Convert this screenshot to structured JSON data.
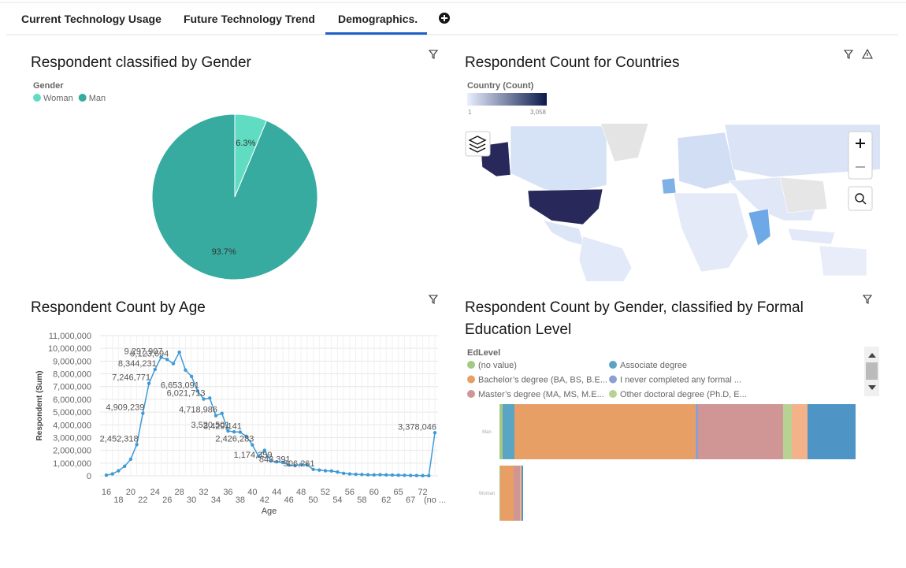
{
  "tabs": [
    "Current Technology Usage",
    "Future Technology Trend",
    "Demographics."
  ],
  "chart_data": [
    {
      "type": "pie",
      "title": "Respondent classified by Gender",
      "legend_title": "Gender",
      "categories": [
        "Woman",
        "Man"
      ],
      "values": [
        6.3,
        93.7
      ],
      "value_labels": [
        "6.3%",
        "93.7%"
      ],
      "colors": [
        "#5fdcc2",
        "#37ab9f"
      ]
    },
    {
      "type": "map",
      "title": "Respondent Count for Countries",
      "legend_title": "Country (Count)",
      "scale_ticks": [
        1,
        {
          "value": 3058,
          "label": "3,058"
        }
      ],
      "colors": [
        "#e9efff",
        "#0c1a4a"
      ]
    },
    {
      "type": "line",
      "title": "Respondent Count by Age",
      "x_label": "Age",
      "y_label": "Respondent (Sum)",
      "color": "#3f9ad6",
      "categories": [
        16,
        null,
        18,
        null,
        20,
        null,
        22,
        null,
        24,
        null,
        26,
        null,
        28,
        null,
        30,
        null,
        32,
        null,
        34,
        null,
        36,
        null,
        38,
        null,
        40,
        null,
        42,
        null,
        44,
        null,
        46,
        null,
        48,
        null,
        50,
        null,
        52,
        null,
        54,
        null,
        56,
        null,
        58,
        null,
        60,
        null,
        62,
        null,
        65,
        null,
        67,
        null,
        72,
        null,
        "(no ..."
      ],
      "values": [
        50000,
        150000,
        400000,
        750000,
        1300000,
        2452318,
        4909239,
        7246771,
        8344231,
        9297907,
        9123694,
        8800000,
        9700000,
        8300000,
        7800000,
        6653091,
        6021713,
        6100000,
        4718986,
        4900000,
        3520501,
        3450000,
        3429141,
        3100000,
        2426283,
        1550000,
        2000000,
        1174359,
        1100000,
        1050000,
        843391,
        800000,
        900000,
        850000,
        506261,
        450000,
        400000,
        380000,
        300000,
        200000,
        150000,
        120000,
        100000,
        80000,
        70000,
        90000,
        70000,
        60000,
        50000,
        40000,
        30000,
        20000,
        15000,
        10000,
        3378046
      ],
      "value_labels": [
        null,
        null,
        null,
        null,
        null,
        "2,452,318",
        "4,909,239",
        "7,246,771",
        "8,344,231",
        "9,297,907",
        "9,123,694",
        null,
        null,
        null,
        null,
        "6,653,091",
        "6,021,713",
        null,
        "4,718,986",
        null,
        "3,520,501",
        null,
        "3,429,141",
        null,
        "2,426,283",
        null,
        null,
        "1,174,359",
        null,
        null,
        "843,391",
        null,
        null,
        null,
        "506,261",
        null,
        null,
        null,
        null,
        null,
        null,
        null,
        null,
        null,
        null,
        null,
        null,
        null,
        null,
        null,
        null,
        null,
        null,
        null,
        "3,378,046"
      ],
      "ylim": [
        0,
        11000000
      ],
      "yticks": [
        0,
        {
          "value": 1000000,
          "label": "1,000,000"
        },
        {
          "value": 2000000,
          "label": "2,000,000"
        },
        {
          "value": 3000000,
          "label": "3,000,000"
        },
        {
          "value": 4000000,
          "label": "4,000,000"
        },
        {
          "value": 5000000,
          "label": "5,000,000"
        },
        {
          "value": 6000000,
          "label": "6,000,000"
        },
        {
          "value": 7000000,
          "label": "7,000,000"
        },
        {
          "value": 8000000,
          "label": "8,000,000"
        },
        {
          "value": 9000000,
          "label": "9,000,000"
        },
        {
          "value": 10000000,
          "label": "10,000,000"
        },
        {
          "value": 11000000,
          "label": "11,000,000"
        }
      ],
      "grid": true
    },
    {
      "type": "stacked-hbar",
      "title": "Respondent Count by Gender, classified by Formal Education Level",
      "legend_title": "EdLevel",
      "categories": [
        "Man",
        "Woman"
      ],
      "series": [
        {
          "name": "(no value)",
          "color": "#a5c882",
          "values": [
            4,
            1
          ]
        },
        {
          "name": "Associate degree",
          "color": "#5aa5c3",
          "values": [
            15,
            0
          ]
        },
        {
          "name": "Bachelor’s degree (BA, BS, B.E...",
          "color": "#e89f66",
          "values": [
            230,
            17
          ]
        },
        {
          "name": "I never completed any formal ...",
          "color": "#8c9fd1",
          "values": [
            3,
            0
          ]
        },
        {
          "name": "Master’s degree (MA, MS, M.E...",
          "color": "#d09595",
          "values": [
            108,
            8
          ]
        },
        {
          "name": "Other doctoral degree (Ph.D, E...",
          "color": "#b7d394",
          "values": [
            11,
            0
          ]
        },
        {
          "name": null,
          "color": "#f4b28a",
          "values": [
            20,
            2
          ]
        },
        {
          "name": null,
          "color": "#4e95c6",
          "values": [
            61,
            2
          ]
        }
      ]
    }
  ]
}
